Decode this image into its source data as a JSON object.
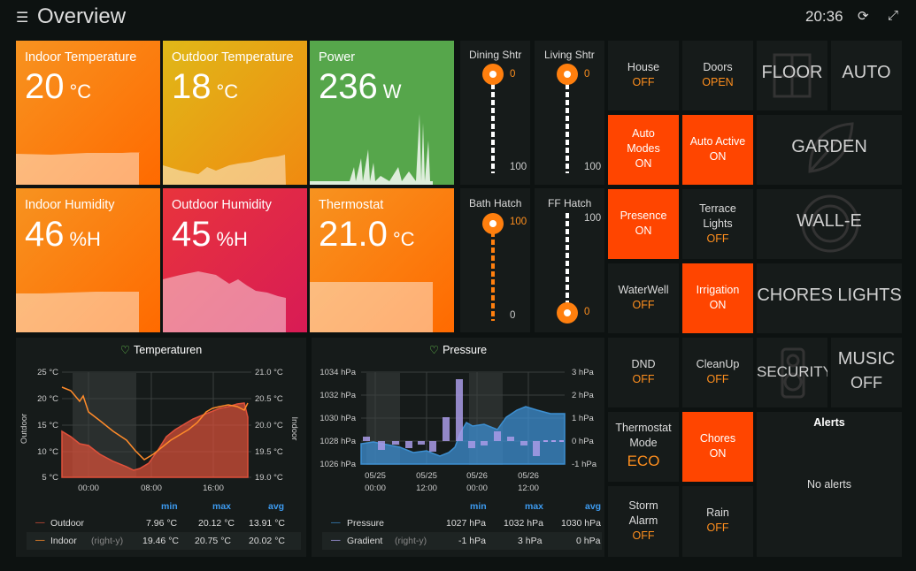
{
  "header": {
    "title": "Overview",
    "clock": "20:36"
  },
  "stats": {
    "indoor_temp": {
      "label": "Indoor Temperature",
      "value": "20",
      "unit": "°C"
    },
    "outdoor_temp": {
      "label": "Outdoor Temperature",
      "value": "18",
      "unit": "°C"
    },
    "power": {
      "label": "Power",
      "value": "236",
      "unit": "W"
    },
    "indoor_hum": {
      "label": "Indoor Humidity",
      "value": "46",
      "unit": "%H"
    },
    "outdoor_hum": {
      "label": "Outdoor Humidity",
      "value": "45",
      "unit": "%H"
    },
    "thermostat": {
      "label": "Thermostat",
      "value": "21.0",
      "unit": "°C"
    }
  },
  "colors": {
    "orange": "#ff7f0e",
    "yellow": "#e0b400",
    "green": "#56a64b",
    "red": "#e02f44",
    "active": "#ff4500",
    "state_text": "#ff8f1e"
  },
  "shutters": [
    {
      "label": "Dining Shtr",
      "value": "0",
      "max": "100",
      "level": 0
    },
    {
      "label": "Living Shtr",
      "value": "0",
      "max": "100",
      "level": 0
    },
    {
      "label": "Bath Hatch",
      "value": "100",
      "min": "0",
      "level": 100
    },
    {
      "label": "FF Hatch",
      "value": "0",
      "max": "100",
      "level": 0
    }
  ],
  "buttons": {
    "house": {
      "label": "House",
      "state": "OFF"
    },
    "doors": {
      "label": "Doors",
      "state": "OPEN"
    },
    "auto_modes": {
      "label": "Auto Modes",
      "state": "ON"
    },
    "auto_active": {
      "label": "Auto Active",
      "state": "ON"
    },
    "presence": {
      "label": "Presence",
      "state": "ON"
    },
    "terrace": {
      "label": "Terrace Lights",
      "state": "OFF"
    },
    "waterwell": {
      "label": "WaterWell",
      "state": "OFF"
    },
    "irrigation": {
      "label": "Irrigation",
      "state": "ON"
    },
    "dnd": {
      "label": "DND",
      "state": "OFF"
    },
    "cleanup": {
      "label": "CleanUp",
      "state": "OFF"
    },
    "thermo_mode": {
      "label": "Thermostat Mode",
      "state": "ECO"
    },
    "chores": {
      "label": "Chores",
      "state": "ON"
    },
    "storm": {
      "label": "Storm Alarm",
      "state": "OFF"
    },
    "rain": {
      "label": "Rain",
      "state": "OFF"
    }
  },
  "big_tiles": {
    "floor": "FLOOR",
    "auto": "AUTO",
    "garden": "GARDEN",
    "walle": "WALL-E",
    "chores_lights": "CHORES LIGHTS",
    "security": "SECURITY",
    "music": "MUSIC",
    "music_state": "OFF"
  },
  "alerts": {
    "title": "Alerts",
    "empty": "No alerts"
  },
  "temperaturen": {
    "title": "Temperaturen",
    "left_axis_label": "Outdoor",
    "right_axis_label": "Indoor",
    "left_ticks": [
      "25 °C",
      "20 °C",
      "15 °C",
      "10 °C",
      "5 °C"
    ],
    "right_ticks": [
      "21.0 °C",
      "20.5 °C",
      "20.0 °C",
      "19.5 °C",
      "19.0 °C"
    ],
    "x_ticks": [
      "00:00",
      "08:00",
      "16:00"
    ],
    "stat_headers": [
      "min",
      "max",
      "avg"
    ],
    "rows": [
      {
        "name": "Outdoor",
        "suffix": "",
        "color": "#e0513b",
        "min": "7.96 °C",
        "max": "20.12 °C",
        "avg": "13.91 °C"
      },
      {
        "name": "Indoor",
        "suffix": "(right-y)",
        "color": "#ff8b2a",
        "min": "19.46 °C",
        "max": "20.75 °C",
        "avg": "20.02 °C"
      }
    ]
  },
  "pressure": {
    "title": "Pressure",
    "left_ticks": [
      "1034 hPa",
      "1032 hPa",
      "1030 hPa",
      "1028 hPa",
      "1026 hPa"
    ],
    "right_ticks": [
      "3 hPa",
      "2 hPa",
      "1 hPa",
      "0 hPa",
      "-1 hPa"
    ],
    "x_ticks": [
      {
        "d": "05/25",
        "t": "00:00"
      },
      {
        "d": "05/25",
        "t": "12:00"
      },
      {
        "d": "05/26",
        "t": "00:00"
      },
      {
        "d": "05/26",
        "t": "12:00"
      }
    ],
    "stat_headers": [
      "min",
      "max",
      "avg"
    ],
    "rows": [
      {
        "name": "Pressure",
        "suffix": "",
        "color": "#3d8fd1",
        "min": "1027 hPa",
        "max": "1032 hPa",
        "avg": "1030 hPa"
      },
      {
        "name": "Gradient",
        "suffix": "(right-y)",
        "color": "#a99be8",
        "min": "-1 hPa",
        "max": "3 hPa",
        "avg": "0 hPa"
      }
    ]
  }
}
